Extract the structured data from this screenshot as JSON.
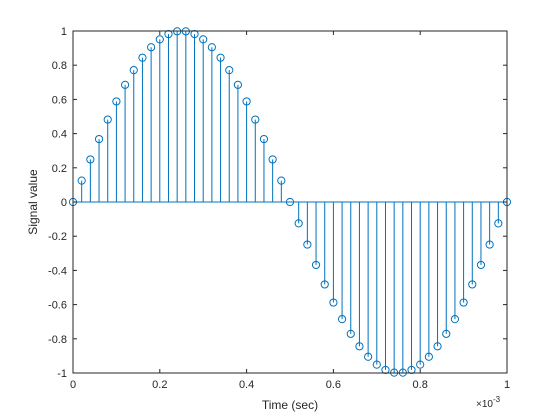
{
  "chart_data": {
    "type": "stem",
    "title": "",
    "xlabel": "Time (sec)",
    "ylabel": "Signal value",
    "x_exponent_label": "×10",
    "x_exponent_power": "-3",
    "xlim": [
      0,
      0.001
    ],
    "ylim": [
      -1,
      1
    ],
    "x_ticks": [
      0,
      0.2,
      0.4,
      0.6,
      0.8,
      1
    ],
    "x_tick_labels": [
      "0",
      "0.2",
      "0.4",
      "0.6",
      "0.8",
      "1"
    ],
    "y_ticks": [
      -1,
      -0.8,
      -0.6,
      -0.4,
      -0.2,
      0,
      0.2,
      0.4,
      0.6,
      0.8,
      1
    ],
    "y_tick_labels": [
      "-1",
      "-0.8",
      "-0.6",
      "-0.4",
      "-0.2",
      "0",
      "0.2",
      "0.4",
      "0.6",
      "0.8",
      "1"
    ],
    "grid": false,
    "box": true,
    "color": "#0072BD",
    "series": [
      {
        "x": [
          0,
          2e-05,
          4e-05,
          6e-05,
          8e-05,
          0.0001,
          0.00012,
          0.00014,
          0.00016,
          0.00018,
          0.0002,
          0.00022,
          0.00024,
          0.00026,
          0.00028,
          0.0003,
          0.00032,
          0.00034,
          0.00036,
          0.00038,
          0.0004,
          0.00042,
          0.00044,
          0.00046,
          0.00048,
          0.0005,
          0.00052,
          0.00054,
          0.00056,
          0.00058,
          0.0006,
          0.00062,
          0.00064,
          0.00066,
          0.00068,
          0.0007,
          0.00072,
          0.00074,
          0.00076,
          0.00078,
          0.0008,
          0.00082,
          0.00084,
          0.00086,
          0.00088,
          0.0009,
          0.00092,
          0.00094,
          0.00096,
          0.00098,
          0.001
        ],
        "values": [
          0,
          0.125,
          0.249,
          0.368,
          0.482,
          0.588,
          0.685,
          0.771,
          0.844,
          0.905,
          0.951,
          0.982,
          0.998,
          0.998,
          0.982,
          0.951,
          0.905,
          0.844,
          0.771,
          0.685,
          0.588,
          0.482,
          0.368,
          0.249,
          0.125,
          0,
          -0.125,
          -0.249,
          -0.368,
          -0.482,
          -0.588,
          -0.685,
          -0.771,
          -0.844,
          -0.905,
          -0.951,
          -0.982,
          -0.998,
          -0.998,
          -0.982,
          -0.951,
          -0.905,
          -0.844,
          -0.771,
          -0.685,
          -0.588,
          -0.482,
          -0.368,
          -0.249,
          -0.125,
          0
        ]
      }
    ]
  }
}
